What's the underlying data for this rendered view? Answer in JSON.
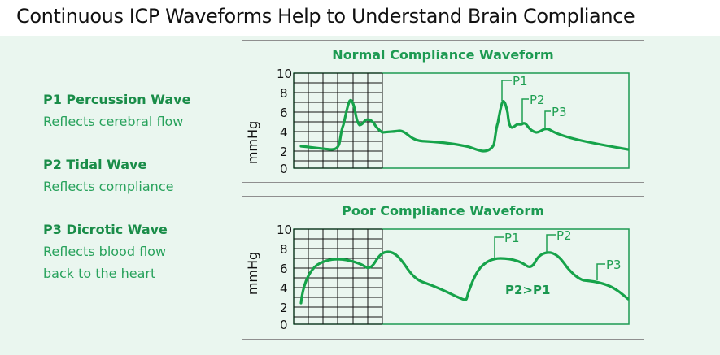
{
  "title": "Continuous ICP Waveforms Help to Understand Brain Compliance",
  "legend": [
    {
      "label": "P1 Percussion Wave",
      "description_lines": [
        "Reflects cerebral flow"
      ]
    },
    {
      "label": "P2 Tidal Wave",
      "description_lines": [
        "Reflects compliance"
      ]
    },
    {
      "label": "P3 Dicrotic Wave",
      "description_lines": [
        "Reflects blood flow",
        "back to the heart"
      ]
    }
  ],
  "charts": [
    {
      "title": "Normal Compliance Waveform",
      "ylabel": "mmHg",
      "y_ticks": [
        "10",
        "8",
        "6",
        "4",
        "2",
        "0"
      ],
      "markers": [
        "P1",
        "P2",
        "P3"
      ],
      "note": ""
    },
    {
      "title": "Poor Compliance Waveform",
      "ylabel": "mmHg",
      "y_ticks": [
        "10",
        "8",
        "6",
        "4",
        "2",
        "0"
      ],
      "markers": [
        "P1",
        "P2",
        "P3"
      ],
      "note": "P2>P1"
    }
  ],
  "colors": {
    "background": "#eaf6ef",
    "title_text": "#111111",
    "accent_green": "#1e9c52",
    "line_green": "#16a34a",
    "grid_black": "#111111",
    "frame_gray": "#8f8f8f"
  }
}
